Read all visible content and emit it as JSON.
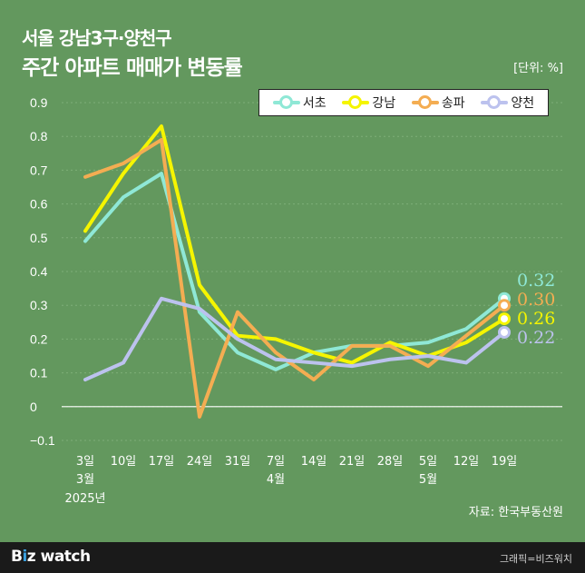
{
  "title_line1": "서울 강남3구·양천구",
  "title_line2": "주간 아파트 매매가 변동률",
  "unit": "[단위: %]",
  "source": "자료: 한국부동산원",
  "brand": {
    "b": "B",
    "i": "i",
    "z": "z",
    "rest": " watch"
  },
  "credit": "그래픽=비즈워치",
  "chart_data": {
    "type": "line",
    "x": [
      "3일",
      "10일",
      "17일",
      "24일",
      "31일",
      "7일",
      "14일",
      "21일",
      "28일",
      "5일",
      "12일",
      "19일"
    ],
    "x_sub": [
      "3월",
      "",
      "",
      "",
      "",
      "4월",
      "",
      "",
      "",
      "5월",
      "",
      ""
    ],
    "year_label": "2025년",
    "ylim": [
      -0.1,
      0.9
    ],
    "yticks": [
      -0.1,
      0,
      0.1,
      0.2,
      0.3,
      0.4,
      0.5,
      0.6,
      0.7,
      0.8,
      0.9
    ],
    "series": [
      {
        "name": "서초",
        "color": "#8fe8d6",
        "values": [
          0.49,
          0.62,
          0.69,
          0.28,
          0.16,
          0.11,
          0.16,
          0.18,
          0.18,
          0.19,
          0.23,
          0.32
        ],
        "end_label": "0.32"
      },
      {
        "name": "강남",
        "color": "#f5f500",
        "values": [
          0.52,
          0.69,
          0.83,
          0.36,
          0.21,
          0.2,
          0.16,
          0.13,
          0.19,
          0.15,
          0.19,
          0.26
        ],
        "end_label": "0.26"
      },
      {
        "name": "송파",
        "color": "#f4ad52",
        "values": [
          0.68,
          0.72,
          0.79,
          -0.03,
          0.28,
          0.16,
          0.08,
          0.18,
          0.18,
          0.12,
          0.21,
          0.3
        ],
        "end_label": "0.30"
      },
      {
        "name": "양천",
        "color": "#bcc2ee",
        "values": [
          0.08,
          0.13,
          0.32,
          0.29,
          0.2,
          0.14,
          0.13,
          0.12,
          0.14,
          0.15,
          0.13,
          0.22
        ],
        "end_label": "0.22"
      }
    ]
  }
}
